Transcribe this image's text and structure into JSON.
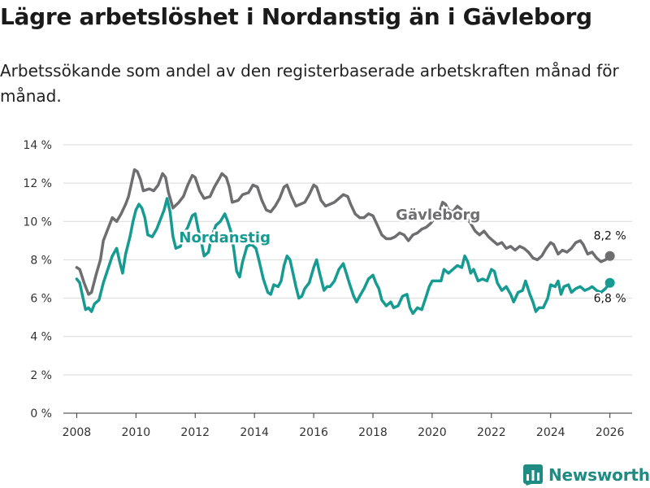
{
  "title": "Lägre arbetslöshet i Nordanstig än i Gävleborg",
  "subtitle": "Arbetssökande som andel av den registerbaserade arbetskraften månad för månad.",
  "brand": "Newsworthy",
  "colors": {
    "gavleborg": "#6e6e70",
    "nordanstig": "#159b92",
    "grid": "#d9d9d9",
    "brand": "#1e8c83"
  },
  "chart_data": {
    "type": "line",
    "title": "Lägre arbetslöshet i Nordanstig än i Gävleborg",
    "xlabel": "",
    "ylabel": "",
    "xlim": [
      2007.55,
      2026.75
    ],
    "ylim": [
      0,
      14
    ],
    "xticks": [
      2008,
      2010,
      2012,
      2014,
      2016,
      2018,
      2020,
      2022,
      2024,
      2026
    ],
    "xtick_labels": [
      "2008",
      "2010",
      "2012",
      "2014",
      "2016",
      "2018",
      "2020",
      "2022",
      "2024",
      "2026"
    ],
    "yticks": [
      0,
      2,
      4,
      6,
      8,
      10,
      12,
      14
    ],
    "ytick_labels": [
      "0 %",
      "2 %",
      "4 %",
      "6 %",
      "8 %",
      "10 %",
      "12 %",
      "14 %"
    ],
    "grid": true,
    "series": [
      {
        "name": "Gävleborg",
        "end_label": "8,2 %",
        "points": [
          [
            2008.0,
            7.6
          ],
          [
            2008.1,
            7.5
          ],
          [
            2008.25,
            6.8
          ],
          [
            2008.4,
            6.2
          ],
          [
            2008.5,
            6.3
          ],
          [
            2008.65,
            7.2
          ],
          [
            2008.8,
            8.0
          ],
          [
            2008.9,
            9.0
          ],
          [
            2009.05,
            9.6
          ],
          [
            2009.2,
            10.2
          ],
          [
            2009.35,
            10.0
          ],
          [
            2009.5,
            10.4
          ],
          [
            2009.65,
            10.9
          ],
          [
            2009.75,
            11.3
          ],
          [
            2009.85,
            12.0
          ],
          [
            2009.95,
            12.7
          ],
          [
            2010.05,
            12.6
          ],
          [
            2010.15,
            12.2
          ],
          [
            2010.25,
            11.6
          ],
          [
            2010.45,
            11.7
          ],
          [
            2010.6,
            11.6
          ],
          [
            2010.75,
            11.9
          ],
          [
            2010.9,
            12.5
          ],
          [
            2011.0,
            12.3
          ],
          [
            2011.1,
            11.5
          ],
          [
            2011.25,
            10.7
          ],
          [
            2011.45,
            11.0
          ],
          [
            2011.6,
            11.3
          ],
          [
            2011.75,
            11.9
          ],
          [
            2011.9,
            12.4
          ],
          [
            2012.0,
            12.3
          ],
          [
            2012.15,
            11.6
          ],
          [
            2012.3,
            11.2
          ],
          [
            2012.5,
            11.3
          ],
          [
            2012.65,
            11.8
          ],
          [
            2012.8,
            12.2
          ],
          [
            2012.9,
            12.5
          ],
          [
            2013.05,
            12.3
          ],
          [
            2013.15,
            11.8
          ],
          [
            2013.25,
            11.0
          ],
          [
            2013.45,
            11.1
          ],
          [
            2013.6,
            11.4
          ],
          [
            2013.8,
            11.5
          ],
          [
            2013.95,
            11.9
          ],
          [
            2014.1,
            11.8
          ],
          [
            2014.25,
            11.1
          ],
          [
            2014.4,
            10.6
          ],
          [
            2014.55,
            10.5
          ],
          [
            2014.7,
            10.8
          ],
          [
            2014.85,
            11.2
          ],
          [
            2015.0,
            11.8
          ],
          [
            2015.1,
            11.9
          ],
          [
            2015.25,
            11.3
          ],
          [
            2015.4,
            10.8
          ],
          [
            2015.55,
            10.9
          ],
          [
            2015.7,
            11.0
          ],
          [
            2015.85,
            11.4
          ],
          [
            2016.0,
            11.9
          ],
          [
            2016.1,
            11.8
          ],
          [
            2016.25,
            11.1
          ],
          [
            2016.4,
            10.8
          ],
          [
            2016.55,
            10.9
          ],
          [
            2016.7,
            11.0
          ],
          [
            2016.85,
            11.2
          ],
          [
            2017.0,
            11.4
          ],
          [
            2017.15,
            11.3
          ],
          [
            2017.25,
            10.9
          ],
          [
            2017.4,
            10.4
          ],
          [
            2017.55,
            10.2
          ],
          [
            2017.7,
            10.2
          ],
          [
            2017.85,
            10.4
          ],
          [
            2018.0,
            10.3
          ],
          [
            2018.15,
            9.8
          ],
          [
            2018.3,
            9.3
          ],
          [
            2018.45,
            9.1
          ],
          [
            2018.6,
            9.1
          ],
          [
            2018.75,
            9.2
          ],
          [
            2018.9,
            9.4
          ],
          [
            2019.05,
            9.3
          ],
          [
            2019.2,
            9.0
          ],
          [
            2019.35,
            9.3
          ],
          [
            2019.5,
            9.4
          ],
          [
            2019.65,
            9.6
          ],
          [
            2019.8,
            9.7
          ],
          [
            2019.95,
            9.9
          ],
          [
            2020.1,
            10.2
          ],
          [
            2020.25,
            10.5
          ],
          [
            2020.35,
            11.0
          ],
          [
            2020.45,
            10.9
          ],
          [
            2020.55,
            10.6
          ],
          [
            2020.7,
            10.5
          ],
          [
            2020.85,
            10.8
          ],
          [
            2021.0,
            10.6
          ],
          [
            2021.15,
            10.2
          ],
          [
            2021.3,
            9.9
          ],
          [
            2021.45,
            9.5
          ],
          [
            2021.6,
            9.3
          ],
          [
            2021.75,
            9.5
          ],
          [
            2021.9,
            9.2
          ],
          [
            2022.05,
            9.0
          ],
          [
            2022.2,
            8.8
          ],
          [
            2022.35,
            8.9
          ],
          [
            2022.5,
            8.6
          ],
          [
            2022.65,
            8.7
          ],
          [
            2022.8,
            8.5
          ],
          [
            2022.95,
            8.7
          ],
          [
            2023.1,
            8.6
          ],
          [
            2023.25,
            8.4
          ],
          [
            2023.4,
            8.1
          ],
          [
            2023.55,
            8.0
          ],
          [
            2023.7,
            8.2
          ],
          [
            2023.85,
            8.6
          ],
          [
            2024.0,
            8.9
          ],
          [
            2024.1,
            8.8
          ],
          [
            2024.25,
            8.3
          ],
          [
            2024.4,
            8.5
          ],
          [
            2024.55,
            8.4
          ],
          [
            2024.7,
            8.6
          ],
          [
            2024.85,
            8.9
          ],
          [
            2025.0,
            9.0
          ],
          [
            2025.1,
            8.8
          ],
          [
            2025.25,
            8.3
          ],
          [
            2025.4,
            8.4
          ],
          [
            2025.55,
            8.1
          ],
          [
            2025.7,
            7.9
          ],
          [
            2025.85,
            8.0
          ],
          [
            2026.0,
            8.2
          ]
        ]
      },
      {
        "name": "Nordanstig",
        "end_label": "6,8 %",
        "points": [
          [
            2008.0,
            7.0
          ],
          [
            2008.1,
            6.8
          ],
          [
            2008.2,
            6.1
          ],
          [
            2008.3,
            5.4
          ],
          [
            2008.4,
            5.5
          ],
          [
            2008.5,
            5.3
          ],
          [
            2008.6,
            5.7
          ],
          [
            2008.75,
            5.9
          ],
          [
            2008.9,
            6.8
          ],
          [
            2009.05,
            7.5
          ],
          [
            2009.2,
            8.2
          ],
          [
            2009.35,
            8.6
          ],
          [
            2009.45,
            7.9
          ],
          [
            2009.55,
            7.3
          ],
          [
            2009.65,
            8.3
          ],
          [
            2009.8,
            9.2
          ],
          [
            2009.9,
            10.0
          ],
          [
            2010.0,
            10.6
          ],
          [
            2010.1,
            10.9
          ],
          [
            2010.2,
            10.7
          ],
          [
            2010.3,
            10.2
          ],
          [
            2010.4,
            9.3
          ],
          [
            2010.55,
            9.2
          ],
          [
            2010.7,
            9.6
          ],
          [
            2010.85,
            10.2
          ],
          [
            2010.95,
            10.6
          ],
          [
            2011.05,
            11.2
          ],
          [
            2011.15,
            10.5
          ],
          [
            2011.25,
            9.2
          ],
          [
            2011.35,
            8.6
          ],
          [
            2011.5,
            8.7
          ],
          [
            2011.6,
            9.3
          ],
          [
            2011.75,
            9.7
          ],
          [
            2011.9,
            10.3
          ],
          [
            2012.0,
            10.4
          ],
          [
            2012.1,
            9.6
          ],
          [
            2012.2,
            9.0
          ],
          [
            2012.3,
            8.2
          ],
          [
            2012.45,
            8.4
          ],
          [
            2012.55,
            9.2
          ],
          [
            2012.7,
            9.8
          ],
          [
            2012.85,
            10.0
          ],
          [
            2013.0,
            10.4
          ],
          [
            2013.1,
            10.0
          ],
          [
            2013.2,
            9.5
          ],
          [
            2013.3,
            8.6
          ],
          [
            2013.4,
            7.4
          ],
          [
            2013.5,
            7.1
          ],
          [
            2013.6,
            7.9
          ],
          [
            2013.75,
            8.7
          ],
          [
            2013.9,
            8.8
          ],
          [
            2014.05,
            8.6
          ],
          [
            2014.15,
            8.0
          ],
          [
            2014.3,
            7.0
          ],
          [
            2014.45,
            6.3
          ],
          [
            2014.55,
            6.2
          ],
          [
            2014.65,
            6.7
          ],
          [
            2014.8,
            6.6
          ],
          [
            2014.9,
            6.9
          ],
          [
            2015.0,
            7.7
          ],
          [
            2015.1,
            8.2
          ],
          [
            2015.2,
            8.0
          ],
          [
            2015.3,
            7.3
          ],
          [
            2015.4,
            6.6
          ],
          [
            2015.5,
            6.0
          ],
          [
            2015.6,
            6.1
          ],
          [
            2015.7,
            6.5
          ],
          [
            2015.85,
            6.8
          ],
          [
            2016.0,
            7.6
          ],
          [
            2016.1,
            8.0
          ],
          [
            2016.2,
            7.3
          ],
          [
            2016.35,
            6.4
          ],
          [
            2016.45,
            6.6
          ],
          [
            2016.55,
            6.6
          ],
          [
            2016.7,
            6.9
          ],
          [
            2016.85,
            7.5
          ],
          [
            2017.0,
            7.8
          ],
          [
            2017.1,
            7.3
          ],
          [
            2017.2,
            6.8
          ],
          [
            2017.35,
            6.1
          ],
          [
            2017.45,
            5.8
          ],
          [
            2017.55,
            6.1
          ],
          [
            2017.7,
            6.5
          ],
          [
            2017.85,
            7.0
          ],
          [
            2018.0,
            7.2
          ],
          [
            2018.1,
            6.8
          ],
          [
            2018.2,
            6.5
          ],
          [
            2018.3,
            5.9
          ],
          [
            2018.45,
            5.6
          ],
          [
            2018.6,
            5.8
          ],
          [
            2018.7,
            5.5
          ],
          [
            2018.85,
            5.6
          ],
          [
            2019.0,
            6.1
          ],
          [
            2019.15,
            6.2
          ],
          [
            2019.25,
            5.5
          ],
          [
            2019.35,
            5.2
          ],
          [
            2019.5,
            5.5
          ],
          [
            2019.65,
            5.4
          ],
          [
            2019.8,
            6.1
          ],
          [
            2019.9,
            6.6
          ],
          [
            2020.0,
            6.9
          ],
          [
            2020.15,
            6.9
          ],
          [
            2020.3,
            6.9
          ],
          [
            2020.4,
            7.5
          ],
          [
            2020.55,
            7.3
          ],
          [
            2020.7,
            7.5
          ],
          [
            2020.85,
            7.7
          ],
          [
            2021.0,
            7.6
          ],
          [
            2021.1,
            8.2
          ],
          [
            2021.2,
            7.9
          ],
          [
            2021.3,
            7.3
          ],
          [
            2021.4,
            7.5
          ],
          [
            2021.55,
            6.9
          ],
          [
            2021.7,
            7.0
          ],
          [
            2021.85,
            6.9
          ],
          [
            2022.0,
            7.5
          ],
          [
            2022.1,
            7.4
          ],
          [
            2022.2,
            6.8
          ],
          [
            2022.35,
            6.4
          ],
          [
            2022.5,
            6.6
          ],
          [
            2022.65,
            6.2
          ],
          [
            2022.75,
            5.8
          ],
          [
            2022.9,
            6.3
          ],
          [
            2023.05,
            6.4
          ],
          [
            2023.15,
            6.9
          ],
          [
            2023.3,
            6.2
          ],
          [
            2023.4,
            5.8
          ],
          [
            2023.5,
            5.3
          ],
          [
            2023.6,
            5.5
          ],
          [
            2023.75,
            5.5
          ],
          [
            2023.9,
            6.0
          ],
          [
            2024.0,
            6.7
          ],
          [
            2024.15,
            6.6
          ],
          [
            2024.25,
            6.9
          ],
          [
            2024.35,
            6.2
          ],
          [
            2024.45,
            6.6
          ],
          [
            2024.6,
            6.7
          ],
          [
            2024.7,
            6.3
          ],
          [
            2024.85,
            6.5
          ],
          [
            2025.0,
            6.6
          ],
          [
            2025.15,
            6.4
          ],
          [
            2025.3,
            6.5
          ],
          [
            2025.4,
            6.6
          ],
          [
            2025.55,
            6.4
          ],
          [
            2025.7,
            6.3
          ],
          [
            2025.85,
            6.5
          ],
          [
            2026.0,
            6.8
          ]
        ]
      }
    ],
    "annotations": [
      {
        "text": "Gävleborg",
        "series": "Gävleborg",
        "x": 2020.2,
        "y": 10.1
      },
      {
        "text": "Nordanstig",
        "series": "Nordanstig",
        "x": 2013.0,
        "y": 8.9
      }
    ]
  }
}
